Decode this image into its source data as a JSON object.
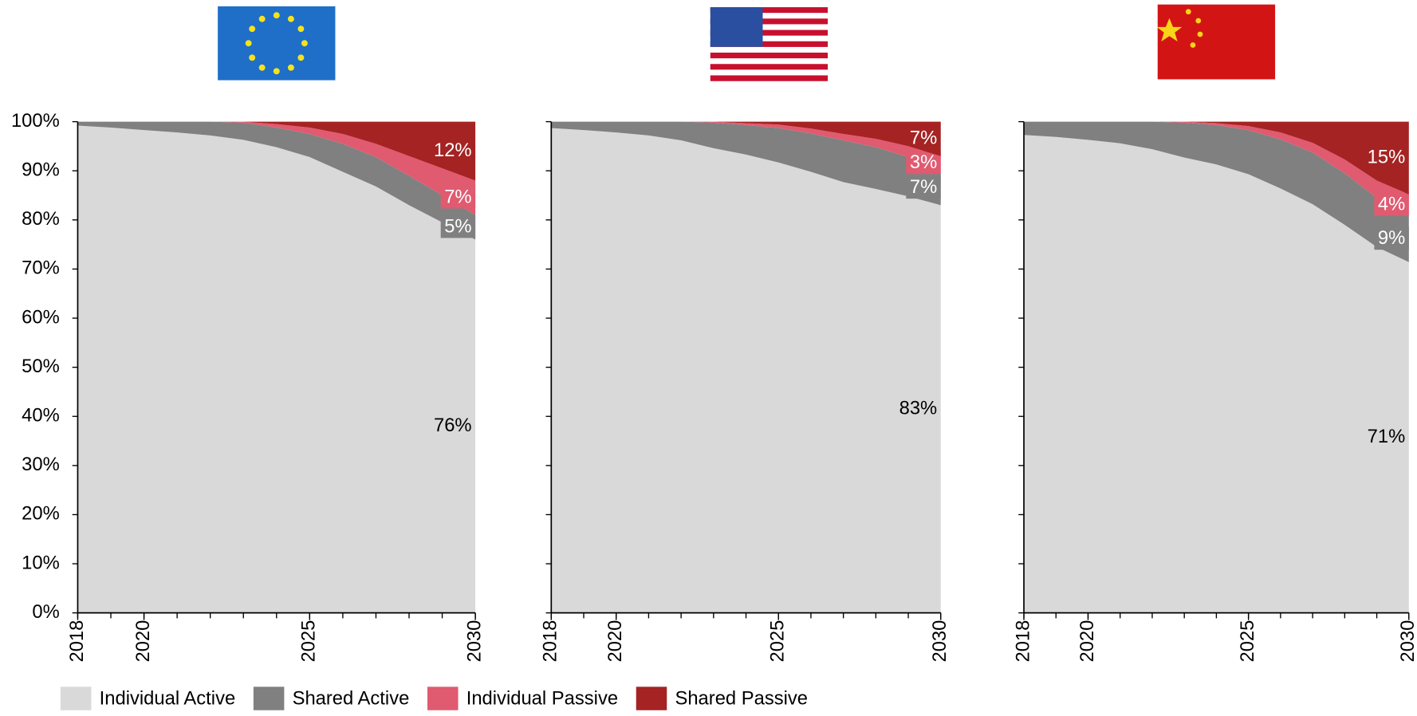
{
  "chart_data": [
    {
      "type": "area",
      "x": [
        2018,
        2019,
        2020,
        2021,
        2022,
        2023,
        2024,
        2025,
        2026,
        2027,
        2028,
        2029,
        2030
      ],
      "xlim": [
        2018,
        2030
      ],
      "xticks": [
        2018,
        2020,
        2025,
        2030
      ],
      "ylim": [
        0,
        100
      ],
      "yticks": [
        {
          "value": 0,
          "label": "0%"
        },
        {
          "value": 10,
          "label": "10%"
        },
        {
          "value": 20,
          "label": "20%"
        },
        {
          "value": 30,
          "label": "30%"
        },
        {
          "value": 40,
          "label": "40%"
        },
        {
          "value": 50,
          "label": "50%"
        },
        {
          "value": 60,
          "label": "60%"
        },
        {
          "value": 70,
          "label": "70%"
        },
        {
          "value": 80,
          "label": "80%"
        },
        {
          "value": 90,
          "label": "90%"
        },
        {
          "value": 100,
          "label": "100%"
        }
      ],
      "series": [
        {
          "name": "Individual Active",
          "color": "#d9d9d9",
          "values": [
            99.2,
            98.8,
            98.3,
            97.8,
            97.2,
            96.3,
            94.8,
            92.8,
            89.8,
            86.8,
            83,
            79.5,
            76
          ],
          "value_labels": [
            null,
            null,
            null,
            null,
            null,
            null,
            null,
            null,
            null,
            null,
            null,
            null,
            "76%"
          ]
        },
        {
          "name": "Shared Active",
          "color": "#808080",
          "values": [
            0.8,
            1.2,
            1.7,
            2.2,
            2.8,
            3.5,
            4,
            4.7,
            5.7,
            6,
            6,
            5.5,
            5
          ],
          "value_labels": [
            null,
            null,
            null,
            null,
            null,
            null,
            null,
            null,
            null,
            null,
            null,
            null,
            "5%"
          ]
        },
        {
          "name": "Individual Passive",
          "color": "#e05a70",
          "values": [
            0,
            0,
            0,
            0,
            0,
            0.2,
            0.7,
            1.3,
            2,
            2.7,
            4,
            5.5,
            7
          ],
          "value_labels": [
            null,
            null,
            null,
            null,
            null,
            null,
            null,
            null,
            null,
            null,
            null,
            null,
            "7%"
          ]
        },
        {
          "name": "Shared Passive",
          "color": "#a52323",
          "values": [
            0,
            0,
            0,
            0,
            0,
            0,
            0.5,
            1.2,
            2.5,
            4.5,
            7,
            9.5,
            12
          ],
          "value_labels": [
            null,
            null,
            null,
            null,
            null,
            null,
            null,
            null,
            null,
            null,
            null,
            null,
            "12%"
          ]
        }
      ]
    },
    {
      "type": "area",
      "x": [
        2018,
        2019,
        2020,
        2021,
        2022,
        2023,
        2024,
        2025,
        2026,
        2027,
        2028,
        2029,
        2030
      ],
      "xlim": [
        2018,
        2030
      ],
      "xticks": [
        2018,
        2020,
        2025,
        2030
      ],
      "ylim": [
        0,
        100
      ],
      "yticks": [
        0,
        10,
        20,
        30,
        40,
        50,
        60,
        70,
        80,
        90,
        100
      ],
      "series": [
        {
          "name": "Individual Active",
          "color": "#d9d9d9",
          "values": [
            98.7,
            98.3,
            97.8,
            97.2,
            96.2,
            94.6,
            93.3,
            91.7,
            89.8,
            87.7,
            86.3,
            84.8,
            83
          ],
          "value_labels": [
            null,
            null,
            null,
            null,
            null,
            null,
            null,
            null,
            null,
            null,
            null,
            null,
            "83%"
          ]
        },
        {
          "name": "Shared Active",
          "color": "#808080",
          "values": [
            1.3,
            1.7,
            2.2,
            2.8,
            3.8,
            5.2,
            6,
            7,
            7.8,
            8.5,
            8.5,
            8,
            7
          ],
          "value_labels": [
            null,
            null,
            null,
            null,
            null,
            null,
            null,
            null,
            null,
            null,
            null,
            null,
            "7%"
          ]
        },
        {
          "name": "Individual Passive",
          "color": "#e05a70",
          "values": [
            0,
            0,
            0,
            0,
            0,
            0.2,
            0.4,
            0.7,
            1,
            1.3,
            1.7,
            2.2,
            3
          ],
          "value_labels": [
            null,
            null,
            null,
            null,
            null,
            null,
            null,
            null,
            null,
            null,
            null,
            null,
            "3%"
          ]
        },
        {
          "name": "Shared Passive",
          "color": "#a52323",
          "values": [
            0,
            0,
            0,
            0,
            0,
            0,
            0.3,
            0.6,
            1.4,
            2.5,
            3.5,
            5,
            7
          ],
          "value_labels": [
            null,
            null,
            null,
            null,
            null,
            null,
            null,
            null,
            null,
            null,
            null,
            null,
            "7%"
          ]
        }
      ]
    },
    {
      "type": "area",
      "x": [
        2018,
        2019,
        2020,
        2021,
        2022,
        2023,
        2024,
        2025,
        2026,
        2027,
        2028,
        2029,
        2030
      ],
      "xlim": [
        2018,
        2030
      ],
      "xticks": [
        2018,
        2020,
        2025,
        2030
      ],
      "ylim": [
        0,
        100
      ],
      "yticks": [
        0,
        10,
        20,
        30,
        40,
        50,
        60,
        70,
        80,
        90,
        100
      ],
      "series": [
        {
          "name": "Individual Active",
          "color": "#d9d9d9",
          "values": [
            97.3,
            96.9,
            96.3,
            95.6,
            94.4,
            92.7,
            91.3,
            89.3,
            86.4,
            83.2,
            79,
            74.5,
            71.4
          ],
          "value_labels": [
            null,
            null,
            null,
            null,
            null,
            null,
            null,
            null,
            null,
            null,
            null,
            null,
            "71%"
          ]
        },
        {
          "name": "Shared Active",
          "color": "#808080",
          "values": [
            2.7,
            3.1,
            3.7,
            4.4,
            5.6,
            7.1,
            8,
            9,
            10,
            10.5,
            10.5,
            10,
            9.4
          ],
          "value_labels": [
            null,
            null,
            null,
            null,
            null,
            null,
            null,
            null,
            null,
            null,
            null,
            null,
            "9%"
          ]
        },
        {
          "name": "Individual Passive",
          "color": "#e05a70",
          "values": [
            0,
            0,
            0,
            0,
            0,
            0.2,
            0.4,
            0.8,
            1.4,
            2,
            2.8,
            3.5,
            4.4
          ],
          "value_labels": [
            null,
            null,
            null,
            null,
            null,
            null,
            null,
            null,
            null,
            null,
            null,
            null,
            "4%"
          ]
        },
        {
          "name": "Shared Passive",
          "color": "#a52323",
          "values": [
            0,
            0,
            0,
            0,
            0,
            0,
            0.3,
            0.9,
            2.2,
            4.3,
            7.7,
            12,
            14.8
          ],
          "value_labels": [
            null,
            null,
            null,
            null,
            null,
            null,
            null,
            null,
            null,
            null,
            null,
            null,
            "15%"
          ]
        }
      ]
    }
  ]
}
